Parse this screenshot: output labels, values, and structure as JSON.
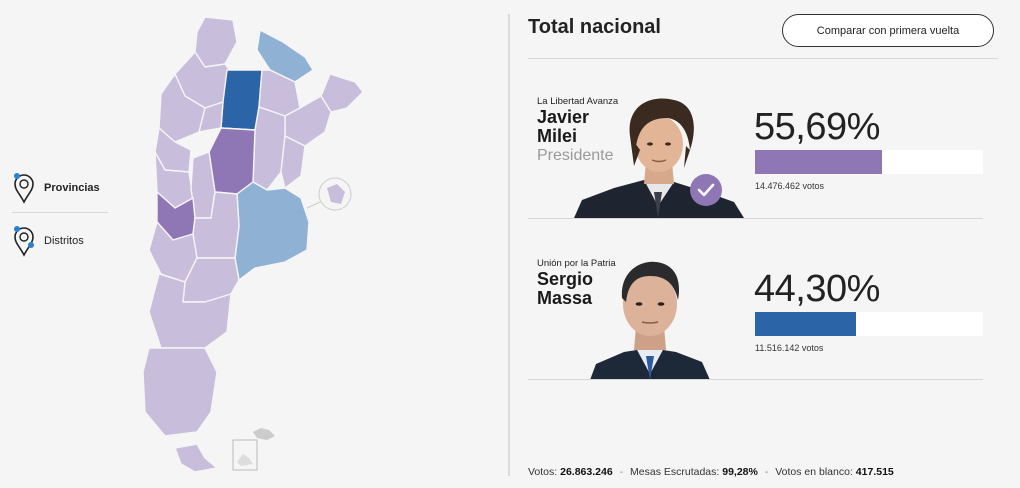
{
  "legend": {
    "items": [
      {
        "label": "Provincias",
        "active": true
      },
      {
        "label": "Distritos",
        "active": false
      }
    ]
  },
  "header": {
    "title": "Total nacional",
    "compare_button": "Comparar con primera vuelta"
  },
  "colors": {
    "milei": "#8f77b5",
    "massa": "#2c64a8",
    "milei_light": "#c9bddc",
    "massa_light": "#8fb1d4"
  },
  "candidates": [
    {
      "party": "La Libertad Avanza",
      "first_name": "Javier",
      "last_name": "Milei",
      "role": "Presidente",
      "percentage": "55,69%",
      "share": 55.69,
      "votes": "14.476.462 votos",
      "winner": true,
      "check_icon": "check-icon"
    },
    {
      "party": "Unión por la Patria",
      "first_name": "Sergio",
      "last_name": "Massa",
      "role": "",
      "percentage": "44,30%",
      "share": 44.3,
      "votes": "11.516.142 votos",
      "winner": false
    }
  ],
  "footer": {
    "votes_label": "Votos:",
    "votes_value": "26.863.246",
    "mesas_label": "Mesas Escrutadas:",
    "mesas_value": "99,28%",
    "blank_label": "Votos en blanco:",
    "blank_value": "417.515"
  }
}
